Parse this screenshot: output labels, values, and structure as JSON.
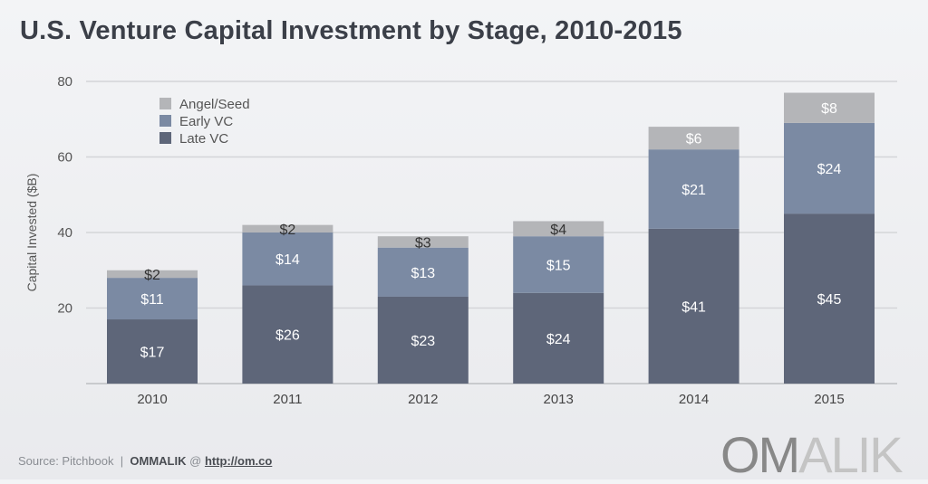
{
  "title": "U.S. Venture Capital Investment by Stage, 2010-2015",
  "footer": {
    "source": "Source: Pitchbook",
    "separator": "|",
    "brand": "OMMALIK",
    "at": "@",
    "link": "http://om.co"
  },
  "logo": {
    "dark": "OM",
    "light": "ALIK"
  },
  "chart_data": {
    "type": "bar",
    "stacked": true,
    "title": "U.S. Venture Capital Investment by Stage, 2010-2015",
    "xlabel": "",
    "ylabel": "Capital Invested ($B)",
    "ylim": [
      0,
      80
    ],
    "yticks": [
      20,
      40,
      60,
      80
    ],
    "grid": true,
    "legend_position": "top-left",
    "categories": [
      "2010",
      "2011",
      "2012",
      "2013",
      "2014",
      "2015"
    ],
    "series": [
      {
        "name": "Late VC",
        "color": "#5e6679",
        "values": [
          17,
          26,
          23,
          24,
          41,
          45
        ],
        "labels": [
          "$17",
          "$26",
          "$23",
          "$24",
          "$41",
          "$45"
        ]
      },
      {
        "name": "Early VC",
        "color": "#7b8aa3",
        "values": [
          11,
          14,
          13,
          15,
          21,
          24
        ],
        "labels": [
          "$11",
          "$14",
          "$13",
          "$15",
          "$21",
          "$24"
        ]
      },
      {
        "name": "Angel/Seed",
        "color": "#b4b5b8",
        "values": [
          2,
          2,
          3,
          4,
          6,
          8
        ],
        "labels": [
          "$2",
          "$2",
          "$3",
          "$4",
          "$6",
          "$8"
        ]
      }
    ],
    "legend_order": [
      "Angel/Seed",
      "Early VC",
      "Late VC"
    ]
  }
}
